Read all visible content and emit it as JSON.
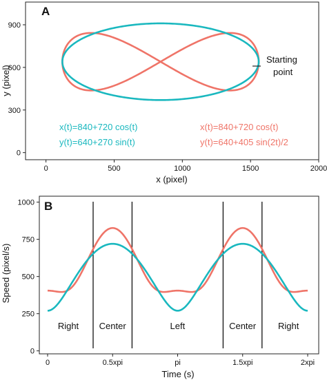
{
  "colors": {
    "teal": "#1ab8bf",
    "salmon": "#ef7468",
    "axis": "#222222"
  },
  "chart_data": [
    {
      "panel": "A",
      "type": "line",
      "xlabel": "x (pixel)",
      "ylabel": "y (pixel)",
      "xlim": [
        -150,
        2000
      ],
      "ylim": [
        -50,
        1060
      ],
      "xticks": [
        0,
        500,
        1000,
        1500,
        2000
      ],
      "yticks": [
        0,
        300,
        600,
        900
      ],
      "grid": false,
      "series": [
        {
          "color": "teal",
          "formula_x": "x(t)=840+720 cos(t)",
          "formula_y": "y(t)=640+270 sin(t)",
          "cx": 840,
          "ax": 720,
          "cy": 640,
          "ay": 270,
          "kind": "ellipse"
        },
        {
          "color": "salmon",
          "formula_x": "x(t)=840+720 cos(t)",
          "formula_y": "y(t)=640+405 sin(2t)/2",
          "cx": 840,
          "ax": 720,
          "cy": 640,
          "ay": 405,
          "kind": "figure-eight"
        }
      ],
      "annotation": {
        "lines": [
          "Starting",
          "point"
        ],
        "at": [
          1560,
          640
        ]
      }
    },
    {
      "panel": "B",
      "type": "line",
      "xlabel": "Time (s)",
      "ylabel": "Speed (pixel/s)",
      "xlim": [
        -0.2,
        6.55
      ],
      "ylim": [
        -20,
        1040
      ],
      "xticks": [
        0,
        1.5708,
        3.1416,
        4.7124,
        6.2832
      ],
      "xtick_labels": [
        "0",
        "0.5xpi",
        "pi",
        "1.5xpi",
        "2xpi"
      ],
      "yticks": [
        0,
        250,
        500,
        750,
        1000
      ],
      "grid": false,
      "series": [
        {
          "color": "teal",
          "speed": "ellipse",
          "ax": 720,
          "ay": 270
        },
        {
          "color": "salmon",
          "speed": "figure-eight",
          "ax": 720,
          "ay": 405
        }
      ],
      "vlines": [
        1.1,
        2.04,
        4.24,
        5.18
      ],
      "regions": [
        {
          "label": "Right",
          "x": 0.5
        },
        {
          "label": "Center",
          "x": 1.57
        },
        {
          "label": "Left",
          "x": 3.14
        },
        {
          "label": "Center",
          "x": 4.71
        },
        {
          "label": "Right",
          "x": 5.82
        }
      ]
    }
  ]
}
